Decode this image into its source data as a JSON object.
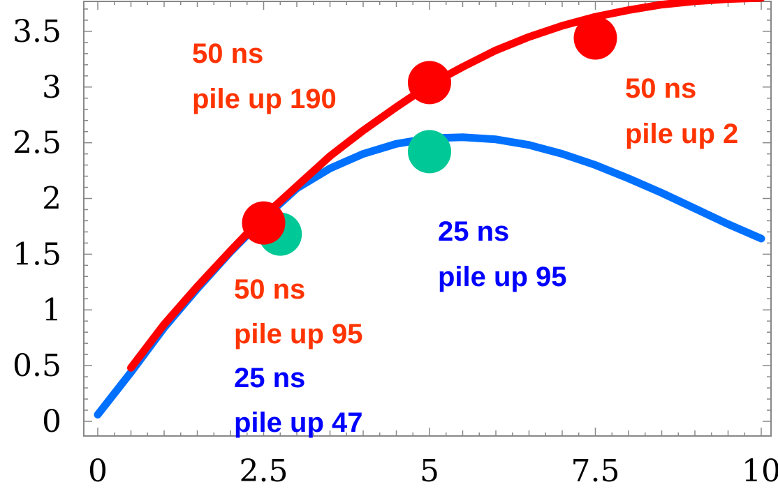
{
  "chart_data": {
    "type": "line",
    "x_ticks": [
      "0",
      "2.5",
      "5",
      "7.5",
      "10"
    ],
    "y_ticks": [
      "0",
      "0.5",
      "1",
      "1.5",
      "2",
      "2.5",
      "3",
      "3.5"
    ],
    "xlim": [
      0,
      10
    ],
    "ylim": [
      0,
      3.9
    ],
    "series": [
      {
        "color": "#ff0000",
        "x": [
          0.5,
          1.0,
          1.5,
          2.0,
          2.5,
          3.0,
          3.5,
          4.0,
          4.5,
          5.0,
          5.5,
          6.0,
          6.5,
          7.0,
          7.5,
          8.0,
          8.5,
          9.0,
          9.5,
          10.0
        ],
        "y": [
          0.48,
          0.87,
          1.21,
          1.53,
          1.84,
          2.11,
          2.38,
          2.61,
          2.82,
          3.02,
          3.18,
          3.33,
          3.45,
          3.55,
          3.63,
          3.69,
          3.74,
          3.77,
          3.79,
          3.8
        ]
      },
      {
        "color": "#0070ff",
        "x": [
          0.0,
          0.5,
          1.0,
          1.5,
          2.0,
          2.5,
          3.0,
          3.5,
          4.0,
          4.5,
          5.0,
          5.5,
          6.0,
          6.5,
          7.0,
          7.5,
          8.0,
          8.5,
          9.0,
          9.5,
          10.0
        ],
        "y": [
          0.06,
          0.44,
          0.84,
          1.19,
          1.52,
          1.82,
          2.09,
          2.27,
          2.4,
          2.49,
          2.54,
          2.55,
          2.53,
          2.48,
          2.4,
          2.3,
          2.18,
          2.05,
          1.91,
          1.77,
          1.64
        ]
      }
    ],
    "points": [
      {
        "x": 2.75,
        "y": 1.68,
        "color": "#00c896"
      },
      {
        "x": 5.0,
        "y": 2.42,
        "color": "#00c896"
      },
      {
        "x": 2.5,
        "y": 1.78,
        "color": "#ff0000"
      },
      {
        "x": 5.0,
        "y": 3.04,
        "color": "#ff0000"
      },
      {
        "x": 7.5,
        "y": 3.44,
        "color": "#ff0000"
      }
    ],
    "annotations": [
      {
        "text": "50 ns",
        "color": "#ff3300"
      },
      {
        "text": "pile up 190",
        "color": "#ff3300"
      },
      {
        "text": "50 ns",
        "color": "#ff3300"
      },
      {
        "text": "pile up 2",
        "color": "#ff3300"
      },
      {
        "text": "25 ns",
        "color": "#0000ff"
      },
      {
        "text": "pile up 95",
        "color": "#0000ff"
      },
      {
        "text": "50 ns",
        "color": "#ff3300"
      },
      {
        "text": "pile up 95",
        "color": "#ff3300"
      },
      {
        "text": "25 ns",
        "color": "#0000ff"
      },
      {
        "text": "pile up 47",
        "color": "#0000ff"
      }
    ]
  }
}
